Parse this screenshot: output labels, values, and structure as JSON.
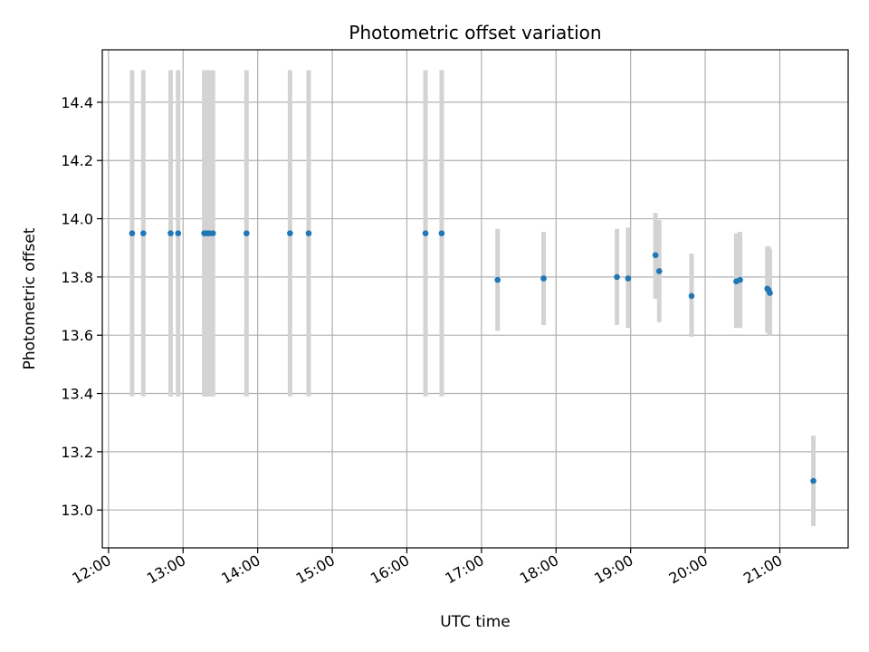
{
  "chart_data": {
    "type": "scatter",
    "title": "Photometric offset variation",
    "xlabel": "UTC time",
    "ylabel": "Photometric offset",
    "grid": true,
    "xlim": [
      "11:55",
      "21:55"
    ],
    "ylim": [
      12.87,
      14.58
    ],
    "x_ticks": [
      "12:00",
      "13:00",
      "14:00",
      "15:00",
      "16:00",
      "17:00",
      "18:00",
      "19:00",
      "20:00",
      "21:00"
    ],
    "y_ticks": [
      "13.0",
      "13.2",
      "13.4",
      "13.6",
      "13.8",
      "14.0",
      "14.2",
      "14.4"
    ],
    "series": [
      {
        "color": "#1f77b4",
        "error_color": "#d3d3d3",
        "x": [
          "12:19",
          "12:28",
          "12:50",
          "12:56",
          "13:17",
          "13:19",
          "13:21",
          "13:24",
          "13:51",
          "14:26",
          "14:41",
          "16:15",
          "16:28",
          "17:13",
          "17:50",
          "18:49",
          "18:58",
          "19:20",
          "19:23",
          "19:49",
          "20:25",
          "20:28",
          "20:50",
          "20:51",
          "20:52",
          "21:27"
        ],
        "y": [
          13.95,
          13.95,
          13.95,
          13.95,
          13.95,
          13.95,
          13.95,
          13.95,
          13.95,
          13.95,
          13.95,
          13.95,
          13.95,
          13.79,
          13.795,
          13.8,
          13.795,
          13.875,
          13.82,
          13.735,
          13.785,
          13.79,
          13.76,
          13.755,
          13.745,
          13.1
        ],
        "err_low": [
          13.39,
          13.39,
          13.39,
          13.39,
          13.39,
          13.39,
          13.39,
          13.39,
          13.39,
          13.39,
          13.39,
          13.39,
          13.39,
          13.615,
          13.635,
          13.635,
          13.625,
          13.725,
          13.645,
          13.595,
          13.625,
          13.625,
          13.61,
          13.605,
          13.6,
          12.945
        ],
        "err_high": [
          14.51,
          14.51,
          14.51,
          14.51,
          14.51,
          14.51,
          14.51,
          14.51,
          14.51,
          14.51,
          14.51,
          14.51,
          14.51,
          13.965,
          13.955,
          13.965,
          13.97,
          14.02,
          13.995,
          13.88,
          13.95,
          13.955,
          13.905,
          13.905,
          13.895,
          13.255
        ]
      }
    ]
  }
}
